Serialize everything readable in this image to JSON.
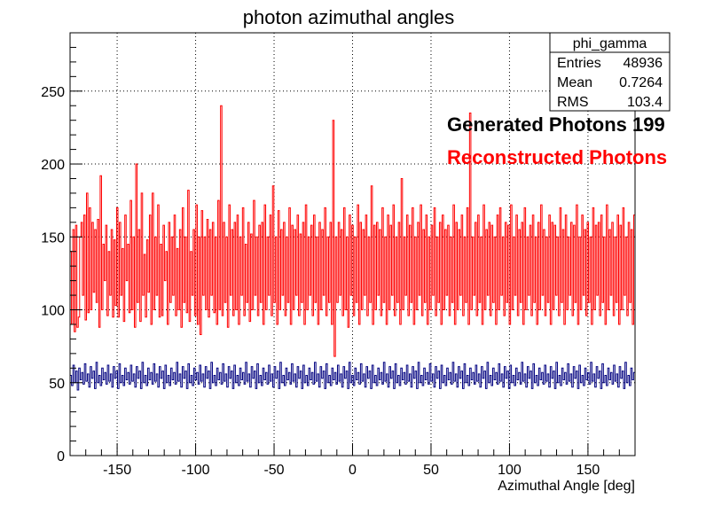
{
  "chart_data": {
    "type": "bar",
    "histogram": true,
    "title": "photon azimuthal angles",
    "xlabel": "Azimuthal Angle [deg]",
    "ylabel": "",
    "xlim": [
      -180,
      180
    ],
    "ylim": [
      0,
      290
    ],
    "x_ticks": [
      -150,
      -100,
      -50,
      0,
      50,
      100,
      150
    ],
    "y_ticks": [
      0,
      50,
      100,
      150,
      200,
      250
    ],
    "grid": true,
    "bin_width_deg": 1,
    "series": [
      {
        "name": "Reconstructed Photons",
        "color": "#ff0000",
        "values": [
          140,
          90,
          155,
          85,
          158,
          88,
          95,
          150,
          160,
          110,
          165,
          93,
          180,
          98,
          170,
          100,
          160,
          112,
          155,
          105,
          162,
          88,
          192,
          100,
          145,
          120,
          158,
          96,
          140,
          110,
          155,
          95,
          148,
          103,
          170,
          95,
          160,
          110,
          142,
          92,
          165,
          120,
          145,
          98,
          175,
          100,
          150,
          88,
          200,
          105,
          155,
          92,
          180,
          110,
          138,
          95,
          148,
          112,
          165,
          90,
          180,
          100,
          150,
          110,
          172,
          95,
          145,
          96,
          158,
          120,
          140,
          90,
          160,
          105,
          150,
          110,
          165,
          96,
          142,
          100,
          155,
          88,
          170,
          105,
          150,
          98,
          182,
          92,
          140,
          110,
          155,
          96,
          172,
          90,
          150,
          83,
          168,
          110,
          150,
          100,
          162,
          95,
          155,
          110,
          160,
          98,
          150,
          90,
          175,
          100,
          240,
          96,
          160,
          105,
          150,
          88,
          172,
          110,
          155,
          96,
          160,
          100,
          165,
          90,
          150,
          110,
          170,
          96,
          145,
          105,
          160,
          92,
          152,
          100,
          175,
          110,
          150,
          96,
          158,
          105,
          160,
          90,
          172,
          100,
          150,
          110,
          165,
          96,
          185,
          105,
          150,
          90,
          168,
          100,
          155,
          110,
          160,
          96,
          150,
          105,
          170,
          90,
          158,
          100,
          155,
          110,
          165,
          96,
          152,
          105,
          160,
          90,
          172,
          100,
          150,
          110,
          158,
          96,
          165,
          105,
          150,
          90,
          160,
          100,
          155,
          110,
          170,
          96,
          150,
          105,
          160,
          90,
          230,
          68,
          150,
          105,
          160,
          110,
          155,
          96,
          170,
          100,
          150,
          88,
          165,
          110,
          158,
          96,
          150,
          105,
          172,
          90,
          160,
          100,
          155,
          110,
          165,
          96,
          150,
          105,
          185,
          90,
          158,
          100,
          160,
          110,
          155,
          96,
          170,
          105,
          150,
          90,
          165,
          100,
          158,
          110,
          172,
          96,
          150,
          105,
          160,
          90,
          190,
          100,
          150,
          110,
          165,
          96,
          158,
          105,
          170,
          90,
          150,
          100,
          160,
          110,
          172,
          96,
          155,
          105,
          165,
          90,
          150,
          100,
          158,
          110,
          170,
          96,
          150,
          105,
          160,
          90,
          165,
          100,
          155,
          110,
          158,
          96,
          150,
          105,
          172,
          90,
          160,
          100,
          155,
          110,
          165,
          96,
          150,
          105,
          170,
          90,
          235,
          100,
          150,
          110,
          160,
          96,
          165,
          105,
          150,
          90,
          172,
          100,
          155,
          110,
          160,
          96,
          158,
          105,
          150,
          90,
          165,
          100,
          170,
          110,
          150,
          96,
          160,
          105,
          158,
          90,
          172,
          100,
          150,
          110,
          165,
          96,
          155,
          105,
          160,
          90,
          170,
          100,
          150,
          110,
          158,
          96,
          165,
          105,
          150,
          90,
          160,
          100,
          172,
          110,
          155,
          96,
          150,
          105,
          165,
          90,
          160,
          100,
          158,
          110,
          150,
          96,
          170,
          105,
          155,
          90,
          165,
          100,
          150,
          110,
          160,
          96,
          158,
          105,
          172,
          90,
          150,
          100,
          165,
          110,
          155,
          96,
          160,
          105,
          150,
          90,
          170,
          100,
          158,
          110,
          160,
          96,
          165,
          105,
          150,
          90,
          172,
          100,
          155,
          110,
          160,
          96,
          150,
          105,
          165,
          90,
          158,
          100,
          170,
          110,
          150,
          96,
          160,
          105,
          155,
          90,
          165
        ]
      },
      {
        "name": "Generated Photons 199",
        "color": "#000080",
        "values": [
          55,
          48,
          62,
          50,
          58,
          45,
          60,
          52,
          57,
          49,
          63,
          51,
          56,
          47,
          61,
          53,
          58,
          46,
          64,
          50,
          55,
          48,
          60,
          52,
          57,
          49,
          62,
          51,
          56,
          47,
          61,
          53,
          58,
          46,
          63,
          50,
          55,
          48,
          60,
          52,
          57,
          49,
          62,
          51,
          56,
          47,
          61,
          53,
          58,
          46,
          64,
          50,
          55,
          48,
          60,
          52,
          57,
          49,
          63,
          51,
          56,
          47,
          61,
          53,
          58,
          46,
          62,
          50,
          55,
          48,
          60,
          52,
          57,
          49,
          64,
          51,
          56,
          47,
          61,
          53,
          58,
          46,
          63,
          50,
          55,
          48,
          60,
          52,
          57,
          49,
          62,
          51,
          56,
          47,
          61,
          53,
          58,
          46,
          64,
          50,
          55,
          48,
          60,
          52,
          57,
          49,
          63,
          51,
          56,
          47,
          61,
          53,
          58,
          46,
          62,
          50,
          55,
          48,
          60,
          52,
          57,
          49,
          64,
          51,
          56,
          47,
          61,
          53,
          58,
          46,
          63,
          50,
          55,
          48,
          60,
          52,
          57,
          49,
          62,
          51,
          56,
          47,
          61,
          53,
          58,
          46,
          64,
          50,
          55,
          48,
          60,
          52,
          57,
          49,
          63,
          51,
          56,
          47,
          61,
          53,
          58,
          46,
          62,
          50,
          55,
          48,
          60,
          52,
          57,
          49,
          64,
          51,
          56,
          47,
          61,
          53,
          58,
          46,
          63,
          50,
          55,
          48,
          60,
          52,
          57,
          49,
          62,
          51,
          56,
          47,
          61,
          53,
          58,
          46,
          64,
          50,
          55,
          48,
          60,
          52,
          57,
          49,
          63,
          51,
          56,
          47,
          61,
          53,
          58,
          46,
          62,
          50,
          55,
          48,
          60,
          52,
          57,
          49,
          64,
          51,
          56,
          47,
          61,
          53,
          58,
          46,
          63,
          50,
          55,
          48,
          60,
          52,
          57,
          49,
          62,
          51,
          56,
          47,
          61,
          53,
          58,
          46,
          64,
          50,
          55,
          48,
          60,
          52,
          57,
          49,
          63,
          51,
          56,
          47,
          61,
          53,
          58,
          46,
          62,
          50,
          55,
          48,
          60,
          52,
          57,
          49,
          64,
          51,
          56,
          47,
          61,
          53,
          58,
          46,
          63,
          50,
          55,
          48,
          60,
          52,
          57,
          49,
          62,
          51,
          56,
          47,
          61,
          53,
          58,
          46,
          64,
          50,
          55,
          48,
          60,
          52,
          57,
          49,
          63,
          51,
          56,
          47,
          61,
          53,
          58,
          46,
          62,
          50,
          55,
          48,
          60,
          52,
          57,
          49,
          64,
          51,
          56,
          47,
          61,
          53,
          58,
          46,
          63,
          50,
          55,
          48,
          60,
          52,
          57,
          49,
          62,
          51,
          56,
          47,
          61,
          53,
          58,
          46,
          64,
          50,
          55,
          48,
          60,
          52,
          57,
          49,
          63,
          51,
          56,
          47,
          61,
          53,
          58,
          46,
          62,
          50,
          55,
          48,
          60,
          52,
          57,
          49,
          64,
          51,
          56,
          47,
          61,
          53,
          58,
          46,
          63,
          50,
          55,
          48,
          60,
          52,
          57,
          49,
          62,
          51,
          56,
          47,
          61,
          53,
          58,
          46,
          64,
          50,
          55,
          48,
          60,
          52,
          57
        ]
      }
    ],
    "stats_box": {
      "name": "phi_gamma",
      "rows": [
        {
          "label": "Entries",
          "value": "48936"
        },
        {
          "label": "Mean",
          "value": "0.7264"
        },
        {
          "label": "RMS",
          "value": "103.4"
        }
      ]
    },
    "legend": {
      "placement": "right",
      "items": [
        "Generated Photons 199",
        "Reconstructed Photons"
      ]
    }
  }
}
